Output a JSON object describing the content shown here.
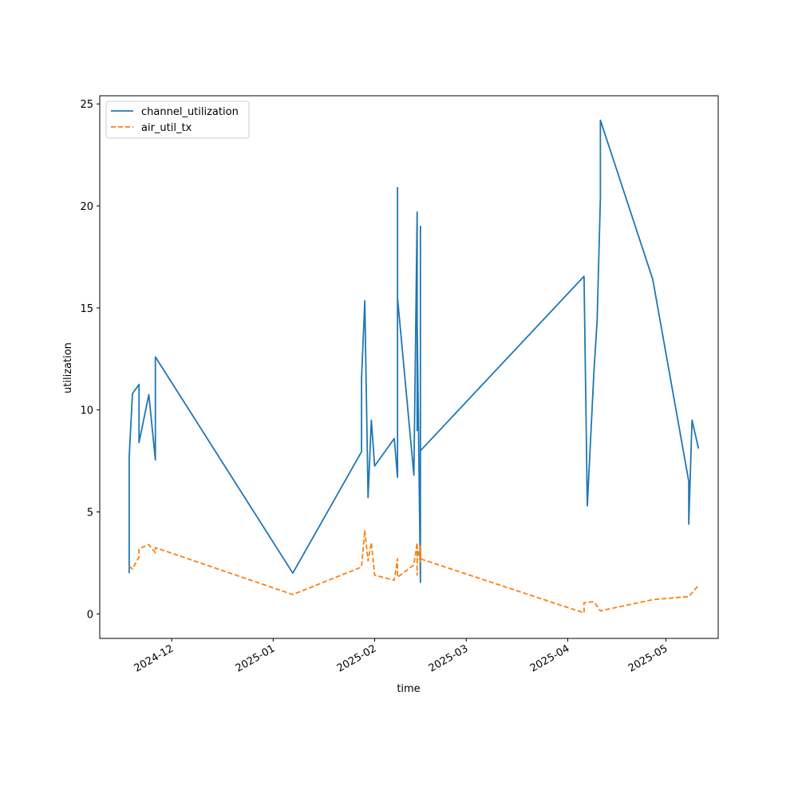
{
  "chart_data": {
    "type": "line",
    "xlabel": "time",
    "ylabel": "utilization",
    "x_axis_type": "date",
    "xlim": [
      "2024-11-09",
      "2025-05-17"
    ],
    "ylim": [
      -1.2,
      25.4
    ],
    "x_ticks": [
      {
        "date": "2024-12-01",
        "label": "2024-12"
      },
      {
        "date": "2025-01-01",
        "label": "2025-01"
      },
      {
        "date": "2025-02-01",
        "label": "2025-02"
      },
      {
        "date": "2025-03-01",
        "label": "2025-03"
      },
      {
        "date": "2025-04-01",
        "label": "2025-04"
      },
      {
        "date": "2025-05-01",
        "label": "2025-05"
      }
    ],
    "y_ticks": [
      0,
      5,
      10,
      15,
      20,
      25
    ],
    "grid": false,
    "legend_position": "upper left",
    "series": [
      {
        "name": "channel_utilization",
        "color": "#1f77b4",
        "line_style": "solid",
        "points": [
          [
            "2024-11-18",
            2.0
          ],
          [
            "2024-11-18",
            7.7
          ],
          [
            "2024-11-19",
            10.8
          ],
          [
            "2024-11-21",
            11.25
          ],
          [
            "2024-11-21",
            8.4
          ],
          [
            "2024-11-24",
            10.75
          ],
          [
            "2024-11-26",
            7.55
          ],
          [
            "2024-11-26",
            12.6
          ],
          [
            "2025-01-07",
            2.0
          ],
          [
            "2025-01-28",
            7.95
          ],
          [
            "2025-01-28",
            11.5
          ],
          [
            "2025-01-29",
            15.35
          ],
          [
            "2025-01-30",
            5.7
          ],
          [
            "2025-01-31",
            9.5
          ],
          [
            "2025-02-01",
            7.25
          ],
          [
            "2025-02-07",
            8.6
          ],
          [
            "2025-02-08",
            6.7
          ],
          [
            "2025-02-08",
            20.9
          ],
          [
            "2025-02-08",
            15.5
          ],
          [
            "2025-02-13",
            6.8
          ],
          [
            "2025-02-14",
            19.7
          ],
          [
            "2025-02-14",
            9.0
          ],
          [
            "2025-02-14",
            14.3
          ],
          [
            "2025-02-15",
            1.55
          ],
          [
            "2025-02-15",
            19.0
          ],
          [
            "2025-02-15",
            8.0
          ],
          [
            "2025-04-06",
            16.55
          ],
          [
            "2025-04-07",
            5.3
          ],
          [
            "2025-04-09",
            11.8
          ],
          [
            "2025-04-10",
            14.4
          ],
          [
            "2025-04-11",
            20.4
          ],
          [
            "2025-04-11",
            24.2
          ],
          [
            "2025-04-27",
            16.4
          ],
          [
            "2025-05-08",
            6.5
          ],
          [
            "2025-05-08",
            4.4
          ],
          [
            "2025-05-09",
            9.5
          ],
          [
            "2025-05-11",
            8.1
          ]
        ]
      },
      {
        "name": "air_util_tx",
        "color": "#ff7f0e",
        "line_style": "dashed",
        "points": [
          [
            "2024-11-18",
            2.35
          ],
          [
            "2024-11-19",
            2.2
          ],
          [
            "2024-11-21",
            2.8
          ],
          [
            "2024-11-21",
            3.2
          ],
          [
            "2024-11-24",
            3.4
          ],
          [
            "2024-11-26",
            3.0
          ],
          [
            "2024-11-26",
            3.25
          ],
          [
            "2025-01-07",
            0.95
          ],
          [
            "2025-01-28",
            2.3
          ],
          [
            "2025-01-29",
            4.1
          ],
          [
            "2025-01-30",
            2.6
          ],
          [
            "2025-01-31",
            3.5
          ],
          [
            "2025-02-01",
            1.9
          ],
          [
            "2025-02-07",
            1.65
          ],
          [
            "2025-02-08",
            2.7
          ],
          [
            "2025-02-08",
            1.8
          ],
          [
            "2025-02-13",
            2.4
          ],
          [
            "2025-02-14",
            3.5
          ],
          [
            "2025-02-14",
            1.9
          ],
          [
            "2025-02-14",
            3.3
          ],
          [
            "2025-02-15",
            2.5
          ],
          [
            "2025-02-15",
            3.35
          ],
          [
            "2025-02-15",
            2.7
          ],
          [
            "2025-04-06",
            0.05
          ],
          [
            "2025-04-06",
            0.55
          ],
          [
            "2025-04-09",
            0.6
          ],
          [
            "2025-04-11",
            0.15
          ],
          [
            "2025-04-27",
            0.7
          ],
          [
            "2025-05-08",
            0.85
          ],
          [
            "2025-05-11",
            1.4
          ]
        ]
      }
    ]
  }
}
